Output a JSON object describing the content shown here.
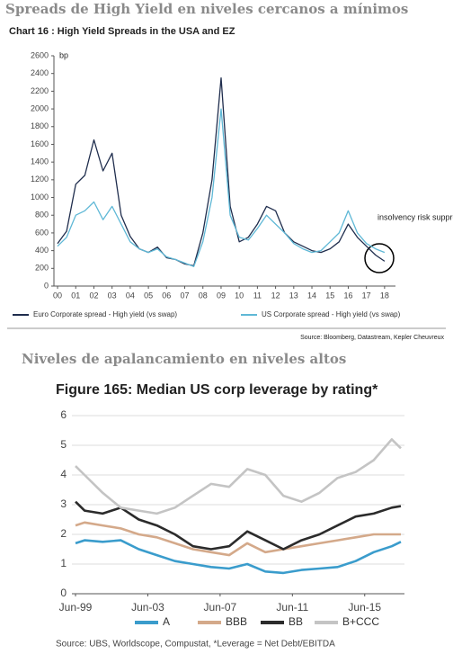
{
  "chart_data": [
    {
      "type": "line",
      "section_title": "Spreads de High Yield en niveles cercanos a mínimos",
      "title": "Chart 16 : High Yield Spreads in the USA and EZ",
      "y_unit": "bp",
      "annotation": "insolvency risk suppressed",
      "source": "Source: Bloomberg, Datastream, Kepler Cheuvreux",
      "x": [
        2000,
        2000.5,
        2001,
        2001.5,
        2002,
        2002.5,
        2003,
        2003.5,
        2004,
        2004.5,
        2005,
        2005.5,
        2006,
        2006.5,
        2007,
        2007.5,
        2008,
        2008.5,
        2009,
        2009.5,
        2010,
        2010.5,
        2011,
        2011.5,
        2012,
        2012.5,
        2013,
        2013.5,
        2014,
        2014.5,
        2015,
        2015.5,
        2016,
        2016.5,
        2017,
        2017.5,
        2018
      ],
      "xlim": [
        1999.8,
        2018.6
      ],
      "xticks": [
        {
          "value": 2000,
          "label": "00"
        },
        {
          "value": 2001,
          "label": "01"
        },
        {
          "value": 2002,
          "label": "02"
        },
        {
          "value": 2003,
          "label": "03"
        },
        {
          "value": 2004,
          "label": "04"
        },
        {
          "value": 2005,
          "label": "05"
        },
        {
          "value": 2006,
          "label": "06"
        },
        {
          "value": 2007,
          "label": "07"
        },
        {
          "value": 2008,
          "label": "08"
        },
        {
          "value": 2009,
          "label": "09"
        },
        {
          "value": 2010,
          "label": "10"
        },
        {
          "value": 2011,
          "label": "11"
        },
        {
          "value": 2012,
          "label": "12"
        },
        {
          "value": 2013,
          "label": "13"
        },
        {
          "value": 2014,
          "label": "14"
        },
        {
          "value": 2015,
          "label": "15"
        },
        {
          "value": 2016,
          "label": "16"
        },
        {
          "value": 2017,
          "label": "17"
        },
        {
          "value": 2018,
          "label": "18"
        }
      ],
      "ylim": [
        0,
        2600
      ],
      "yticks": [
        0,
        200,
        400,
        600,
        800,
        1000,
        1200,
        1400,
        1600,
        1800,
        2000,
        2200,
        2400,
        2600
      ],
      "grid": false,
      "line_width": 1.3,
      "series": [
        {
          "name": "Euro Corporate spread - High yield (vs swap)",
          "color": "#1f2d4d",
          "values": [
            480,
            620,
            1150,
            1250,
            1650,
            1300,
            1500,
            800,
            560,
            420,
            380,
            440,
            320,
            300,
            250,
            230,
            600,
            1200,
            2350,
            900,
            500,
            550,
            700,
            900,
            850,
            600,
            500,
            450,
            400,
            380,
            420,
            500,
            700,
            550,
            450,
            350,
            280
          ]
        },
        {
          "name": "US Corporate spread - High yield (vs swap)",
          "color": "#5fb8d6",
          "values": [
            450,
            550,
            800,
            850,
            950,
            750,
            900,
            700,
            500,
            420,
            380,
            420,
            330,
            300,
            260,
            220,
            500,
            1000,
            2000,
            800,
            550,
            520,
            650,
            800,
            700,
            600,
            480,
            420,
            380,
            400,
            500,
            600,
            850,
            600,
            480,
            420,
            380
          ]
        }
      ]
    },
    {
      "type": "line",
      "section_title": "Niveles de apalancamiento en niveles altos",
      "title": "Figure 165: Median US corp leverage by rating*",
      "source": "Source:  UBS, Worldscope, Compustat, *Leverage = Net Debt/EBITDA",
      "x": [
        1999.5,
        2000,
        2001,
        2002,
        2003,
        2004,
        2005,
        2006,
        2007,
        2008,
        2009,
        2010,
        2011,
        2012,
        2013,
        2014,
        2015,
        2016,
        2017,
        2017.5
      ],
      "xlim": [
        1999.3,
        2017.7
      ],
      "xticks": [
        {
          "value": 1999.5,
          "label": "Jun-99"
        },
        {
          "value": 2003.5,
          "label": "Jun-03"
        },
        {
          "value": 2007.5,
          "label": "Jun-07"
        },
        {
          "value": 2011.5,
          "label": "Jun-11"
        },
        {
          "value": 2015.5,
          "label": "Jun-15"
        }
      ],
      "ylim": [
        0,
        6
      ],
      "yticks": [
        0,
        1,
        2,
        3,
        4,
        5,
        6
      ],
      "grid": true,
      "line_width": 2.6,
      "series": [
        {
          "name": "A",
          "color": "#3a9ccc",
          "values": [
            1.7,
            1.8,
            1.75,
            1.8,
            1.5,
            1.3,
            1.1,
            1.0,
            0.9,
            0.85,
            1.0,
            0.75,
            0.7,
            0.8,
            0.85,
            0.9,
            1.1,
            1.4,
            1.6,
            1.75
          ]
        },
        {
          "name": "BBB",
          "color": "#d4a98a",
          "values": [
            2.3,
            2.4,
            2.3,
            2.2,
            2.0,
            1.9,
            1.7,
            1.5,
            1.4,
            1.3,
            1.7,
            1.4,
            1.5,
            1.6,
            1.7,
            1.8,
            1.9,
            2.0,
            2.0,
            2.0
          ]
        },
        {
          "name": "BB",
          "color": "#2b2b2b",
          "values": [
            3.1,
            2.8,
            2.7,
            2.9,
            2.5,
            2.3,
            2.0,
            1.6,
            1.5,
            1.6,
            2.1,
            1.8,
            1.5,
            1.8,
            2.0,
            2.3,
            2.6,
            2.7,
            2.9,
            2.95
          ]
        },
        {
          "name": "B+CCC",
          "color": "#c4c4c4",
          "values": [
            4.3,
            4.0,
            3.4,
            2.9,
            2.8,
            2.7,
            2.9,
            3.3,
            3.7,
            3.6,
            4.2,
            4.0,
            3.3,
            3.1,
            3.4,
            3.9,
            4.1,
            4.5,
            5.2,
            4.9
          ]
        }
      ]
    }
  ]
}
